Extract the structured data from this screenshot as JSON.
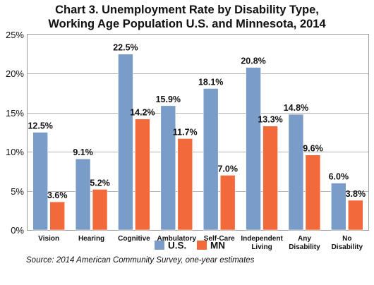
{
  "chart_data": {
    "type": "bar",
    "title_lines": [
      "Chart 3. Unemployment Rate by Disability Type,",
      "Working Age Population U.S. and Minnesota, 2014"
    ],
    "categories": [
      [
        "Vision"
      ],
      [
        "Hearing"
      ],
      [
        "Cognitive"
      ],
      [
        "Ambulatory"
      ],
      [
        "Self-Care"
      ],
      [
        "Independent",
        "Living"
      ],
      [
        "Any",
        "Disability"
      ],
      [
        "No",
        "Disability"
      ]
    ],
    "series": [
      {
        "name": "U.S.",
        "color": "#7a9cc8",
        "values": [
          12.5,
          9.1,
          22.5,
          15.9,
          18.1,
          20.8,
          14.8,
          6.0
        ],
        "labels": [
          "12.5%",
          "9.1%",
          "22.5%",
          "15.9%",
          "18.1%",
          "20.8%",
          "14.8%",
          "6.0%"
        ]
      },
      {
        "name": "MN",
        "color": "#f26a3c",
        "values": [
          3.6,
          5.2,
          14.2,
          11.7,
          7.0,
          13.3,
          9.6,
          3.8
        ],
        "labels": [
          "3.6%",
          "5.2%",
          "14.2%",
          "11.7%",
          "7.0%",
          "13.3%",
          "9.6%",
          "3.8%"
        ]
      }
    ],
    "yticks": [
      {
        "value": 0,
        "label": "0%"
      },
      {
        "value": 5,
        "label": "5%"
      },
      {
        "value": 10,
        "label": "10%"
      },
      {
        "value": 15,
        "label": "15%"
      },
      {
        "value": 20,
        "label": "20%"
      },
      {
        "value": 25,
        "label": "25%"
      }
    ],
    "ylim": [
      0,
      25
    ],
    "grid": true,
    "legend_position": "bottom",
    "source": "Source: 2014 American Community Survey, one-year estimates"
  }
}
